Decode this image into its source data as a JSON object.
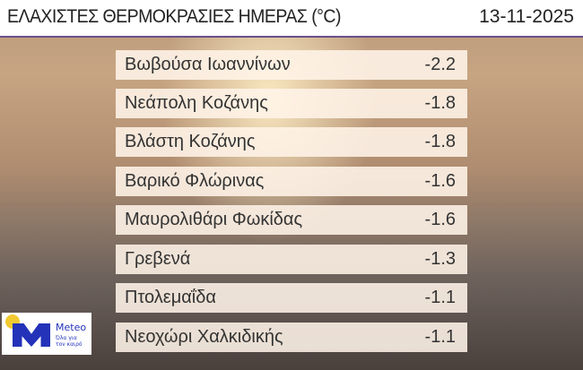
{
  "header": {
    "title": "ΕΛΑΧΙΣΤΕΣ ΘΕΡΜΟΚΡΑΣΙΕΣ ΗΜΕΡΑΣ (°C)",
    "date": "13-11-2025"
  },
  "rows": [
    {
      "name": "Βωβούσα Ιωαννίνων",
      "value": "-2.2"
    },
    {
      "name": "Νεάπολη Κοζάνης",
      "value": "-1.8"
    },
    {
      "name": "Βλάστη Κοζάνης",
      "value": "-1.8"
    },
    {
      "name": "Βαρικό Φλώρινας",
      "value": "-1.6"
    },
    {
      "name": "Μαυρολιθάρι Φωκίδας",
      "value": "-1.6"
    },
    {
      "name": "Γρεβενά",
      "value": "-1.3"
    },
    {
      "name": "Πτολεμαΐδα",
      "value": "-1.1"
    },
    {
      "name": "Νεοχώρι Χαλκιδικής",
      "value": "-1.1"
    }
  ],
  "logo": {
    "brand": "Meteo",
    "tagline": "Όλα για τον καιρό"
  },
  "colors": {
    "header_line": "#6a4f8a",
    "logo_blue": "#2332b8",
    "logo_yellow": "#f2c930"
  }
}
